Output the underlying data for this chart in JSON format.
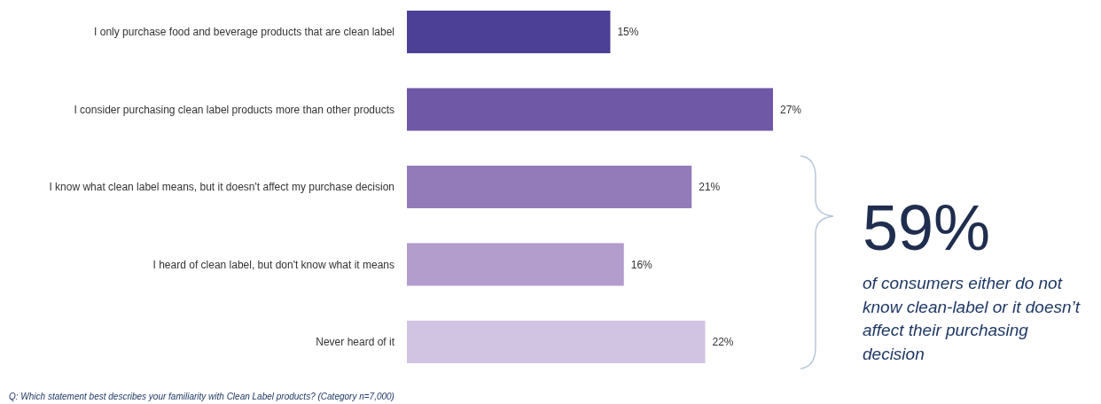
{
  "chart_data": {
    "type": "bar",
    "orientation": "horizontal",
    "categories": [
      "I only purchase food and beverage products that are clean label",
      "I consider purchasing clean label products more than other products",
      "I know what clean label means, but it doesn't affect my purchase decision",
      "I heard of clean label, but don't know what it means",
      "Never heard of it"
    ],
    "values": [
      15,
      27,
      21,
      16,
      22
    ],
    "colors": [
      "#4b3f96",
      "#6f58a6",
      "#937bba",
      "#b29dcc",
      "#d1c3e2"
    ],
    "value_labels": [
      "15%",
      "27%",
      "21%",
      "16%",
      "22%"
    ],
    "annotations": [
      "59%",
      "of consumers either do not know clean-label or it doesn’t affect their purchasing decision",
      "Q: Which statement best describes your familiarity with Clean Label products? (Category n=7,000)"
    ],
    "data_labels": false
  }
}
